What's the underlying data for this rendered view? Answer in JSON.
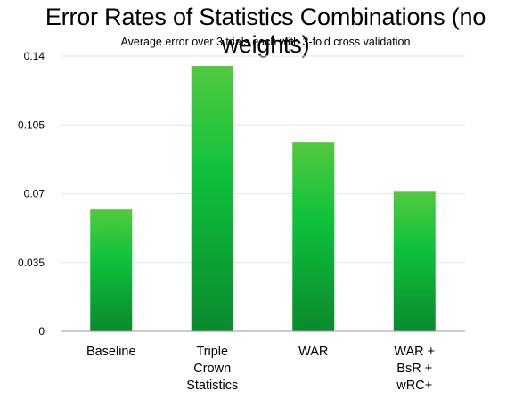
{
  "chart_data": {
    "type": "bar",
    "title": "Error Rates of Statistics Combinations (no weights)",
    "subtitle": "Average error over 3 trials each with 3-fold cross validation",
    "xlabel": "",
    "ylabel": "",
    "categories": [
      "Baseline",
      "Triple Crown Statistics",
      "WAR",
      "WAR + BsR + wRC+"
    ],
    "category_lines": [
      [
        "Baseline"
      ],
      [
        "Triple",
        "Crown",
        "Statistics"
      ],
      [
        "WAR"
      ],
      [
        "WAR +",
        "BsR +",
        "wRC+"
      ]
    ],
    "values": [
      0.062,
      0.135,
      0.096,
      0.071
    ],
    "ylim": [
      0,
      0.14
    ],
    "yticks": [
      0,
      0.035,
      0.07,
      0.105,
      0.14
    ],
    "ytick_labels": [
      "0",
      "0.035",
      "0.07",
      "0.105",
      "0.14"
    ],
    "grid": true,
    "legend": "none",
    "colors": {
      "bar_top": "#52c93f",
      "bar_mid": "#0fc23b",
      "bar_bottom": "#0a8a2e",
      "grid": "#e6e6e6",
      "axis": "#9a9a9a"
    }
  }
}
